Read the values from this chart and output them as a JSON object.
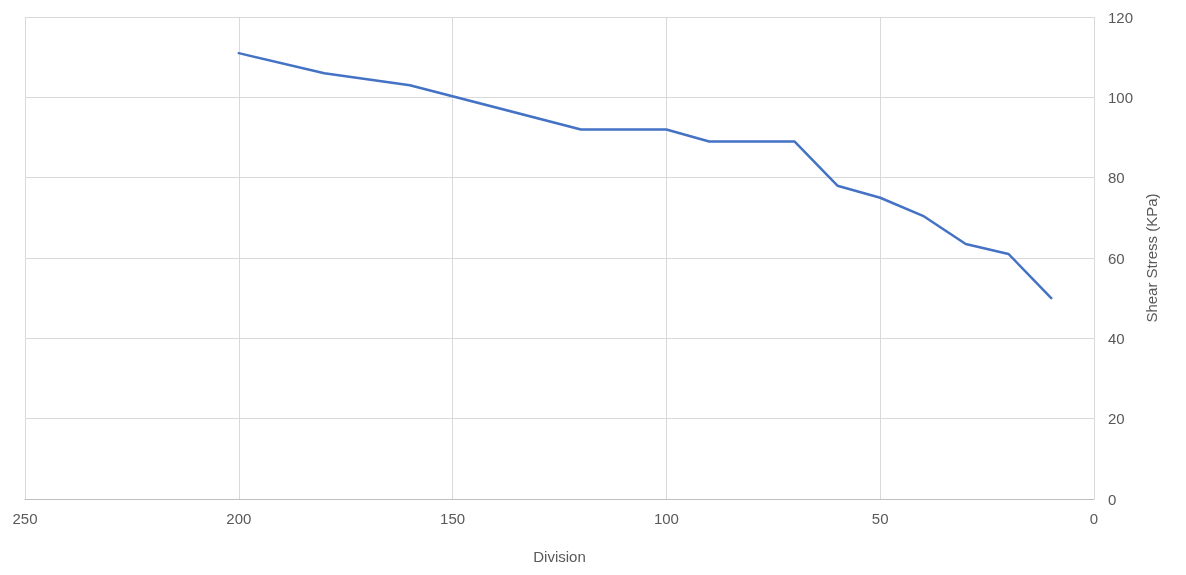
{
  "chart_data": {
    "type": "line",
    "xlabel": "Division",
    "ylabel": "Shear Stress (KPa)",
    "x": [
      200,
      180,
      160,
      120,
      100,
      90,
      70,
      60,
      50,
      40,
      30,
      20,
      10
    ],
    "series": [
      {
        "color": "#4472c4",
        "values": [
          111,
          106,
          103,
          92,
          92,
          89,
          89,
          78,
          75,
          70.5,
          63.5,
          61,
          50
        ]
      }
    ],
    "xlim": [
      250,
      0
    ],
    "xticks": [
      0,
      50,
      100,
      150,
      200,
      250
    ],
    "ylim": [
      0,
      120
    ],
    "yticks": [
      0,
      20,
      40,
      60,
      80,
      100,
      120
    ],
    "grid": true,
    "marker": "none",
    "line_style": "solid"
  }
}
